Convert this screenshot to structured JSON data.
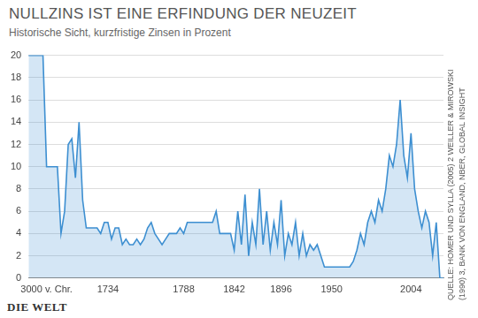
{
  "chart_data": {
    "type": "area",
    "title": "NULLZINS IST EINE ERFINDUNG DER NEUZEIT",
    "subtitle": "Historische Sicht, kurzfristige Zinsen in Prozent",
    "source": "QUELLE: HOMER UND SYLLA (2005) 2 WEILLER & MIROWSKI (1990) 3, BANK VON ENGLAND, NBER, GLOBAL INSIGHT",
    "logo": "DIE WELT",
    "categories": [
      null,
      null,
      null,
      null,
      null,
      "3000 v. Chr.",
      null,
      null,
      null,
      null,
      null,
      null,
      null,
      null,
      null,
      null,
      null,
      null,
      null,
      null,
      null,
      null,
      "1734",
      null,
      null,
      null,
      null,
      null,
      null,
      null,
      null,
      null,
      null,
      null,
      null,
      null,
      null,
      null,
      null,
      null,
      null,
      null,
      null,
      "1788",
      null,
      null,
      null,
      null,
      null,
      null,
      null,
      null,
      null,
      null,
      null,
      null,
      null,
      "1842",
      null,
      null,
      null,
      null,
      null,
      null,
      null,
      null,
      null,
      null,
      null,
      null,
      "1896",
      null,
      null,
      null,
      null,
      null,
      null,
      null,
      null,
      null,
      null,
      null,
      null,
      null,
      "1950",
      null,
      null,
      null,
      null,
      null,
      null,
      null,
      null,
      null,
      null,
      null,
      null,
      null,
      null,
      null,
      null,
      null,
      null,
      null,
      null,
      null,
      "2004",
      null,
      null,
      null,
      null,
      null,
      null,
      null,
      null,
      null
    ],
    "values": [
      20,
      20,
      20,
      20,
      20,
      10,
      10,
      10,
      10,
      4,
      6,
      12,
      12.5,
      9,
      14,
      7,
      4.5,
      4.5,
      4.5,
      4.5,
      4,
      5,
      5,
      3.5,
      4.5,
      4.5,
      3,
      3.5,
      3,
      3,
      3.5,
      3,
      3.5,
      4.5,
      5,
      4,
      3.5,
      3,
      3.5,
      4,
      4,
      4,
      4.5,
      4,
      5,
      5,
      5,
      5,
      5,
      5,
      5,
      5,
      6,
      4,
      4,
      4,
      4,
      2.5,
      6,
      3,
      7.5,
      2,
      5,
      3,
      8,
      3,
      6,
      2.5,
      5,
      3,
      7,
      2,
      4,
      3,
      5,
      2,
      4,
      2,
      3,
      2.5,
      3,
      2,
      1,
      1,
      1,
      1,
      1,
      1,
      1,
      1,
      1.5,
      2.5,
      4,
      3,
      5,
      6,
      5,
      7,
      6,
      8,
      11,
      10,
      12,
      16,
      11,
      9,
      13,
      8,
      6,
      4.5,
      6,
      5,
      2,
      5,
      0,
      0
    ],
    "color": "#3d8fd1",
    "ylim": [
      0,
      20
    ],
    "yticks": [
      0,
      2,
      4,
      6,
      8,
      10,
      12,
      14,
      16,
      18,
      20
    ],
    "grid": true
  }
}
